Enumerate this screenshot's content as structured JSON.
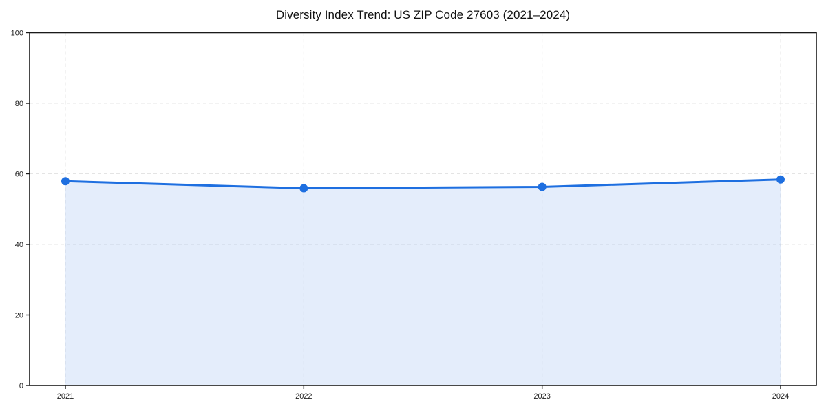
{
  "chart_data": {
    "type": "area",
    "title": "Diversity Index Trend: US ZIP Code 27603 (2021–2024)",
    "x": [
      "2021",
      "2022",
      "2023",
      "2024"
    ],
    "series": [
      {
        "name": "Diversity Index",
        "values": [
          57.9,
          55.9,
          56.3,
          58.4
        ]
      }
    ],
    "xlabel": "",
    "ylabel": "",
    "ylim": [
      0,
      100
    ],
    "yticks": [
      0,
      20,
      40,
      60,
      80,
      100
    ],
    "grid": "dashed-both-axes",
    "legend_position": "none",
    "colors": {
      "line": "#1e6fe0",
      "marker": "#1e6fe0",
      "fill": "rgba(30,111,224,0.12)",
      "grid": "#e4e4e4",
      "axis": "#1a1a1a",
      "tick_text": "#222222",
      "background": "#ffffff"
    },
    "marker_radius": 6,
    "line_width": 3
  }
}
